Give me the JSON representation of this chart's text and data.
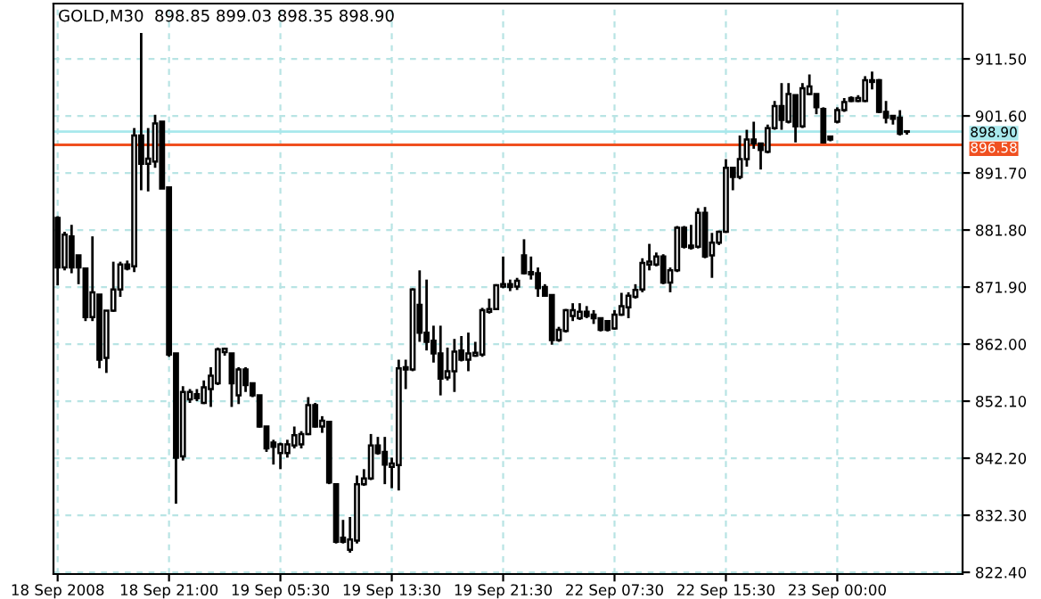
{
  "chart_data": {
    "type": "candlestick",
    "title": "GOLD,M30  898.85 899.03 898.35 898.90",
    "categories": [
      "18 Sep 2008",
      null,
      null,
      null,
      null,
      null,
      null,
      null,
      null,
      null,
      null,
      null,
      null,
      null,
      null,
      null,
      "18 Sep 21:00",
      null,
      null,
      null,
      null,
      null,
      null,
      null,
      null,
      null,
      null,
      null,
      null,
      null,
      null,
      null,
      "19 Sep 05:30",
      null,
      null,
      null,
      null,
      null,
      null,
      null,
      null,
      null,
      null,
      null,
      null,
      null,
      null,
      null,
      "19 Sep 13:30",
      null,
      null,
      null,
      null,
      null,
      null,
      null,
      null,
      null,
      null,
      null,
      null,
      null,
      null,
      null,
      "19 Sep 21:30",
      null,
      null,
      null,
      null,
      null,
      null,
      null,
      null,
      null,
      null,
      null,
      null,
      null,
      null,
      null,
      "22 Sep 07:30",
      null,
      null,
      null,
      null,
      null,
      null,
      null,
      null,
      null,
      null,
      null,
      null,
      null,
      null,
      null,
      "22 Sep 15:30",
      null,
      null,
      null,
      null,
      null,
      null,
      null,
      null,
      null,
      null,
      null,
      null,
      null,
      null,
      null,
      "23 Sep 00:00",
      null,
      null,
      null,
      null,
      null,
      null,
      null,
      null,
      null,
      null
    ],
    "ohlc": [
      [
        883.9,
        884.2,
        872.2,
        875.3
      ],
      [
        875.3,
        881.5,
        874.8,
        881.0
      ],
      [
        880.7,
        882.7,
        874.3,
        875.3
      ],
      [
        877.4,
        877.4,
        872.4,
        875.3
      ],
      [
        875.1,
        875.1,
        866.0,
        866.7
      ],
      [
        866.7,
        880.7,
        866.0,
        871.0
      ],
      [
        870.6,
        870.6,
        857.8,
        859.3
      ],
      [
        859.6,
        867.8,
        857.0,
        867.8
      ],
      [
        867.8,
        876.3,
        867.6,
        871.5
      ],
      [
        871.5,
        876.3,
        870.2,
        875.8
      ],
      [
        875.8,
        876.5,
        874.8,
        875.1
      ],
      [
        875.5,
        899.5,
        874.5,
        898.2
      ],
      [
        898.2,
        916.0,
        888.7,
        893.3
      ],
      [
        893.3,
        899.5,
        888.5,
        894.2
      ],
      [
        893.7,
        901.8,
        892.6,
        900.3
      ],
      [
        900.6,
        900.6,
        889.0,
        889.0
      ],
      [
        889.2,
        889.2,
        859.8,
        860.2
      ],
      [
        860.4,
        860.4,
        834.3,
        842.3
      ],
      [
        842.5,
        854.7,
        841.8,
        853.7
      ],
      [
        852.4,
        854.2,
        851.8,
        853.7
      ],
      [
        853.3,
        854.2,
        852.1,
        852.6
      ],
      [
        851.8,
        855.7,
        851.6,
        854.5
      ],
      [
        854.2,
        858.0,
        851.1,
        856.5
      ],
      [
        855.2,
        861.4,
        854.9,
        861.1
      ],
      [
        860.6,
        861.4,
        860.0,
        861.2
      ],
      [
        860.4,
        860.4,
        851.1,
        855.2
      ],
      [
        853.1,
        858.0,
        851.6,
        857.6
      ],
      [
        857.6,
        858.0,
        853.7,
        854.9
      ],
      [
        855.2,
        855.2,
        852.8,
        853.1
      ],
      [
        853.1,
        853.1,
        847.5,
        847.7
      ],
      [
        847.7,
        847.7,
        843.3,
        843.9
      ],
      [
        844.9,
        845.4,
        841.1,
        844.2
      ],
      [
        843.1,
        844.9,
        840.3,
        844.6
      ],
      [
        843.1,
        845.4,
        842.3,
        844.6
      ],
      [
        844.4,
        847.7,
        843.9,
        846.2
      ],
      [
        844.6,
        846.9,
        843.9,
        846.4
      ],
      [
        846.4,
        852.8,
        846.2,
        851.4
      ],
      [
        851.4,
        851.8,
        847.5,
        847.7
      ],
      [
        847.7,
        849.5,
        846.6,
        848.7
      ],
      [
        848.5,
        848.5,
        837.7,
        838.0
      ],
      [
        837.7,
        837.7,
        827.4,
        827.7
      ],
      [
        828.4,
        831.5,
        827.4,
        827.7
      ],
      [
        826.3,
        832.0,
        825.8,
        828.1
      ],
      [
        827.9,
        839.2,
        827.4,
        837.7
      ],
      [
        837.7,
        840.3,
        837.4,
        838.7
      ],
      [
        838.7,
        846.4,
        838.4,
        844.4
      ],
      [
        844.4,
        845.9,
        842.8,
        843.1
      ],
      [
        843.3,
        845.9,
        837.7,
        841.1
      ],
      [
        840.7,
        842.3,
        837.0,
        841.3
      ],
      [
        841.0,
        859.3,
        836.6,
        857.8
      ],
      [
        857.6,
        859.3,
        854.2,
        858.0
      ],
      [
        857.6,
        871.7,
        857.3,
        871.5
      ],
      [
        868.8,
        874.8,
        862.4,
        864.0
      ],
      [
        864.0,
        873.2,
        860.9,
        862.4
      ],
      [
        862.6,
        865.2,
        858.8,
        860.4
      ],
      [
        860.4,
        865.2,
        853.1,
        856.0
      ],
      [
        856.2,
        861.4,
        855.7,
        857.3
      ],
      [
        857.3,
        862.9,
        853.7,
        860.7
      ],
      [
        860.9,
        863.4,
        859.0,
        859.3
      ],
      [
        859.3,
        864.0,
        857.3,
        860.4
      ],
      [
        860.0,
        862.4,
        859.8,
        860.5
      ],
      [
        860.2,
        868.3,
        859.8,
        867.9
      ],
      [
        867.6,
        869.9,
        867.3,
        868.1
      ],
      [
        868.1,
        872.4,
        867.9,
        872.2
      ],
      [
        872.0,
        877.2,
        871.7,
        872.4
      ],
      [
        872.4,
        873.2,
        871.2,
        871.9
      ],
      [
        872.0,
        873.5,
        871.4,
        873.0
      ],
      [
        877.4,
        880.2,
        874.1,
        874.3
      ],
      [
        874.5,
        877.2,
        873.2,
        874.1
      ],
      [
        874.3,
        875.3,
        870.2,
        871.7
      ],
      [
        871.9,
        872.4,
        870.2,
        870.4
      ],
      [
        870.5,
        870.5,
        861.9,
        862.7
      ],
      [
        862.7,
        865.0,
        862.4,
        864.5
      ],
      [
        864.3,
        868.1,
        864.0,
        867.9
      ],
      [
        866.9,
        869.1,
        866.0,
        867.9
      ],
      [
        866.5,
        869.1,
        866.2,
        867.6
      ],
      [
        867.6,
        868.6,
        866.5,
        866.9
      ],
      [
        867.1,
        867.9,
        865.5,
        866.5
      ],
      [
        866.5,
        866.5,
        864.2,
        864.5
      ],
      [
        866.0,
        866.0,
        864.2,
        864.5
      ],
      [
        864.7,
        867.9,
        864.5,
        867.1
      ],
      [
        867.1,
        870.9,
        866.9,
        868.6
      ],
      [
        868.4,
        871.0,
        866.5,
        870.4
      ],
      [
        870.2,
        872.4,
        869.9,
        871.4
      ],
      [
        871.5,
        876.9,
        871.0,
        876.1
      ],
      [
        875.8,
        879.4,
        874.8,
        876.3
      ],
      [
        875.8,
        877.9,
        875.5,
        877.2
      ],
      [
        877.2,
        877.6,
        872.4,
        872.7
      ],
      [
        872.7,
        875.3,
        871.0,
        874.8
      ],
      [
        874.8,
        882.5,
        874.5,
        882.2
      ],
      [
        882.2,
        882.5,
        878.6,
        878.9
      ],
      [
        879.1,
        882.7,
        878.4,
        878.7
      ],
      [
        878.9,
        885.6,
        878.6,
        884.8
      ],
      [
        884.8,
        885.8,
        876.9,
        877.2
      ],
      [
        877.4,
        881.3,
        873.5,
        879.6
      ],
      [
        879.6,
        881.7,
        879.2,
        881.5
      ],
      [
        881.5,
        894.1,
        881.3,
        892.6
      ],
      [
        892.6,
        892.6,
        888.7,
        891.0
      ],
      [
        891.0,
        898.2,
        890.6,
        894.1
      ],
      [
        894.1,
        899.2,
        892.8,
        897.5
      ],
      [
        897.5,
        900.6,
        895.9,
        896.8
      ],
      [
        896.8,
        896.8,
        892.3,
        895.7
      ],
      [
        895.4,
        900.1,
        895.1,
        899.5
      ],
      [
        899.5,
        904.2,
        899.2,
        903.3
      ],
      [
        903.3,
        907.3,
        899.2,
        900.9
      ],
      [
        900.6,
        907.3,
        900.3,
        905.4
      ],
      [
        905.2,
        905.2,
        897.0,
        899.8
      ],
      [
        899.8,
        907.3,
        899.5,
        906.4
      ],
      [
        905.4,
        908.8,
        905.2,
        906.7
      ],
      [
        905.4,
        905.4,
        901.9,
        903.1
      ],
      [
        902.8,
        903.1,
        896.8,
        897.0
      ],
      [
        898.0,
        898.2,
        897.2,
        897.5
      ],
      [
        900.6,
        903.1,
        900.3,
        902.6
      ],
      [
        902.6,
        904.7,
        902.3,
        904.0
      ],
      [
        904.7,
        905.0,
        904.0,
        904.2
      ],
      [
        904.2,
        905.2,
        904.0,
        904.7
      ],
      [
        904.2,
        908.5,
        904.0,
        907.8
      ],
      [
        907.5,
        909.3,
        906.2,
        907.8
      ],
      [
        907.8,
        908.0,
        902.1,
        902.3
      ],
      [
        902.3,
        904.2,
        900.3,
        901.3
      ],
      [
        901.6,
        901.6,
        900.1,
        901.1
      ],
      [
        901.3,
        902.6,
        898.2,
        898.5
      ],
      [
        898.85,
        899.03,
        898.35,
        898.9
      ]
    ],
    "ylim": [
      822.1,
      921.1
    ],
    "yticks": [
      {
        "value": 822.4,
        "label": "822.40"
      },
      {
        "value": 832.3,
        "label": "832.30"
      },
      {
        "value": 842.2,
        "label": "842.20"
      },
      {
        "value": 852.1,
        "label": "852.10"
      },
      {
        "value": 862.0,
        "label": "862.00"
      },
      {
        "value": 871.9,
        "label": "871.90"
      },
      {
        "value": 881.8,
        "label": "881.80"
      },
      {
        "value": 891.7,
        "label": "891.70"
      },
      {
        "value": 901.6,
        "label": "901.60"
      },
      {
        "value": 911.5,
        "label": "911.50"
      }
    ],
    "grid": true,
    "ref_lines": [
      {
        "axis": "y",
        "value": 898.9,
        "label": "898.90",
        "color": "#a8e8ec"
      },
      {
        "axis": "y",
        "value": 896.58,
        "label": "896.58",
        "color": "#f05020"
      }
    ]
  }
}
